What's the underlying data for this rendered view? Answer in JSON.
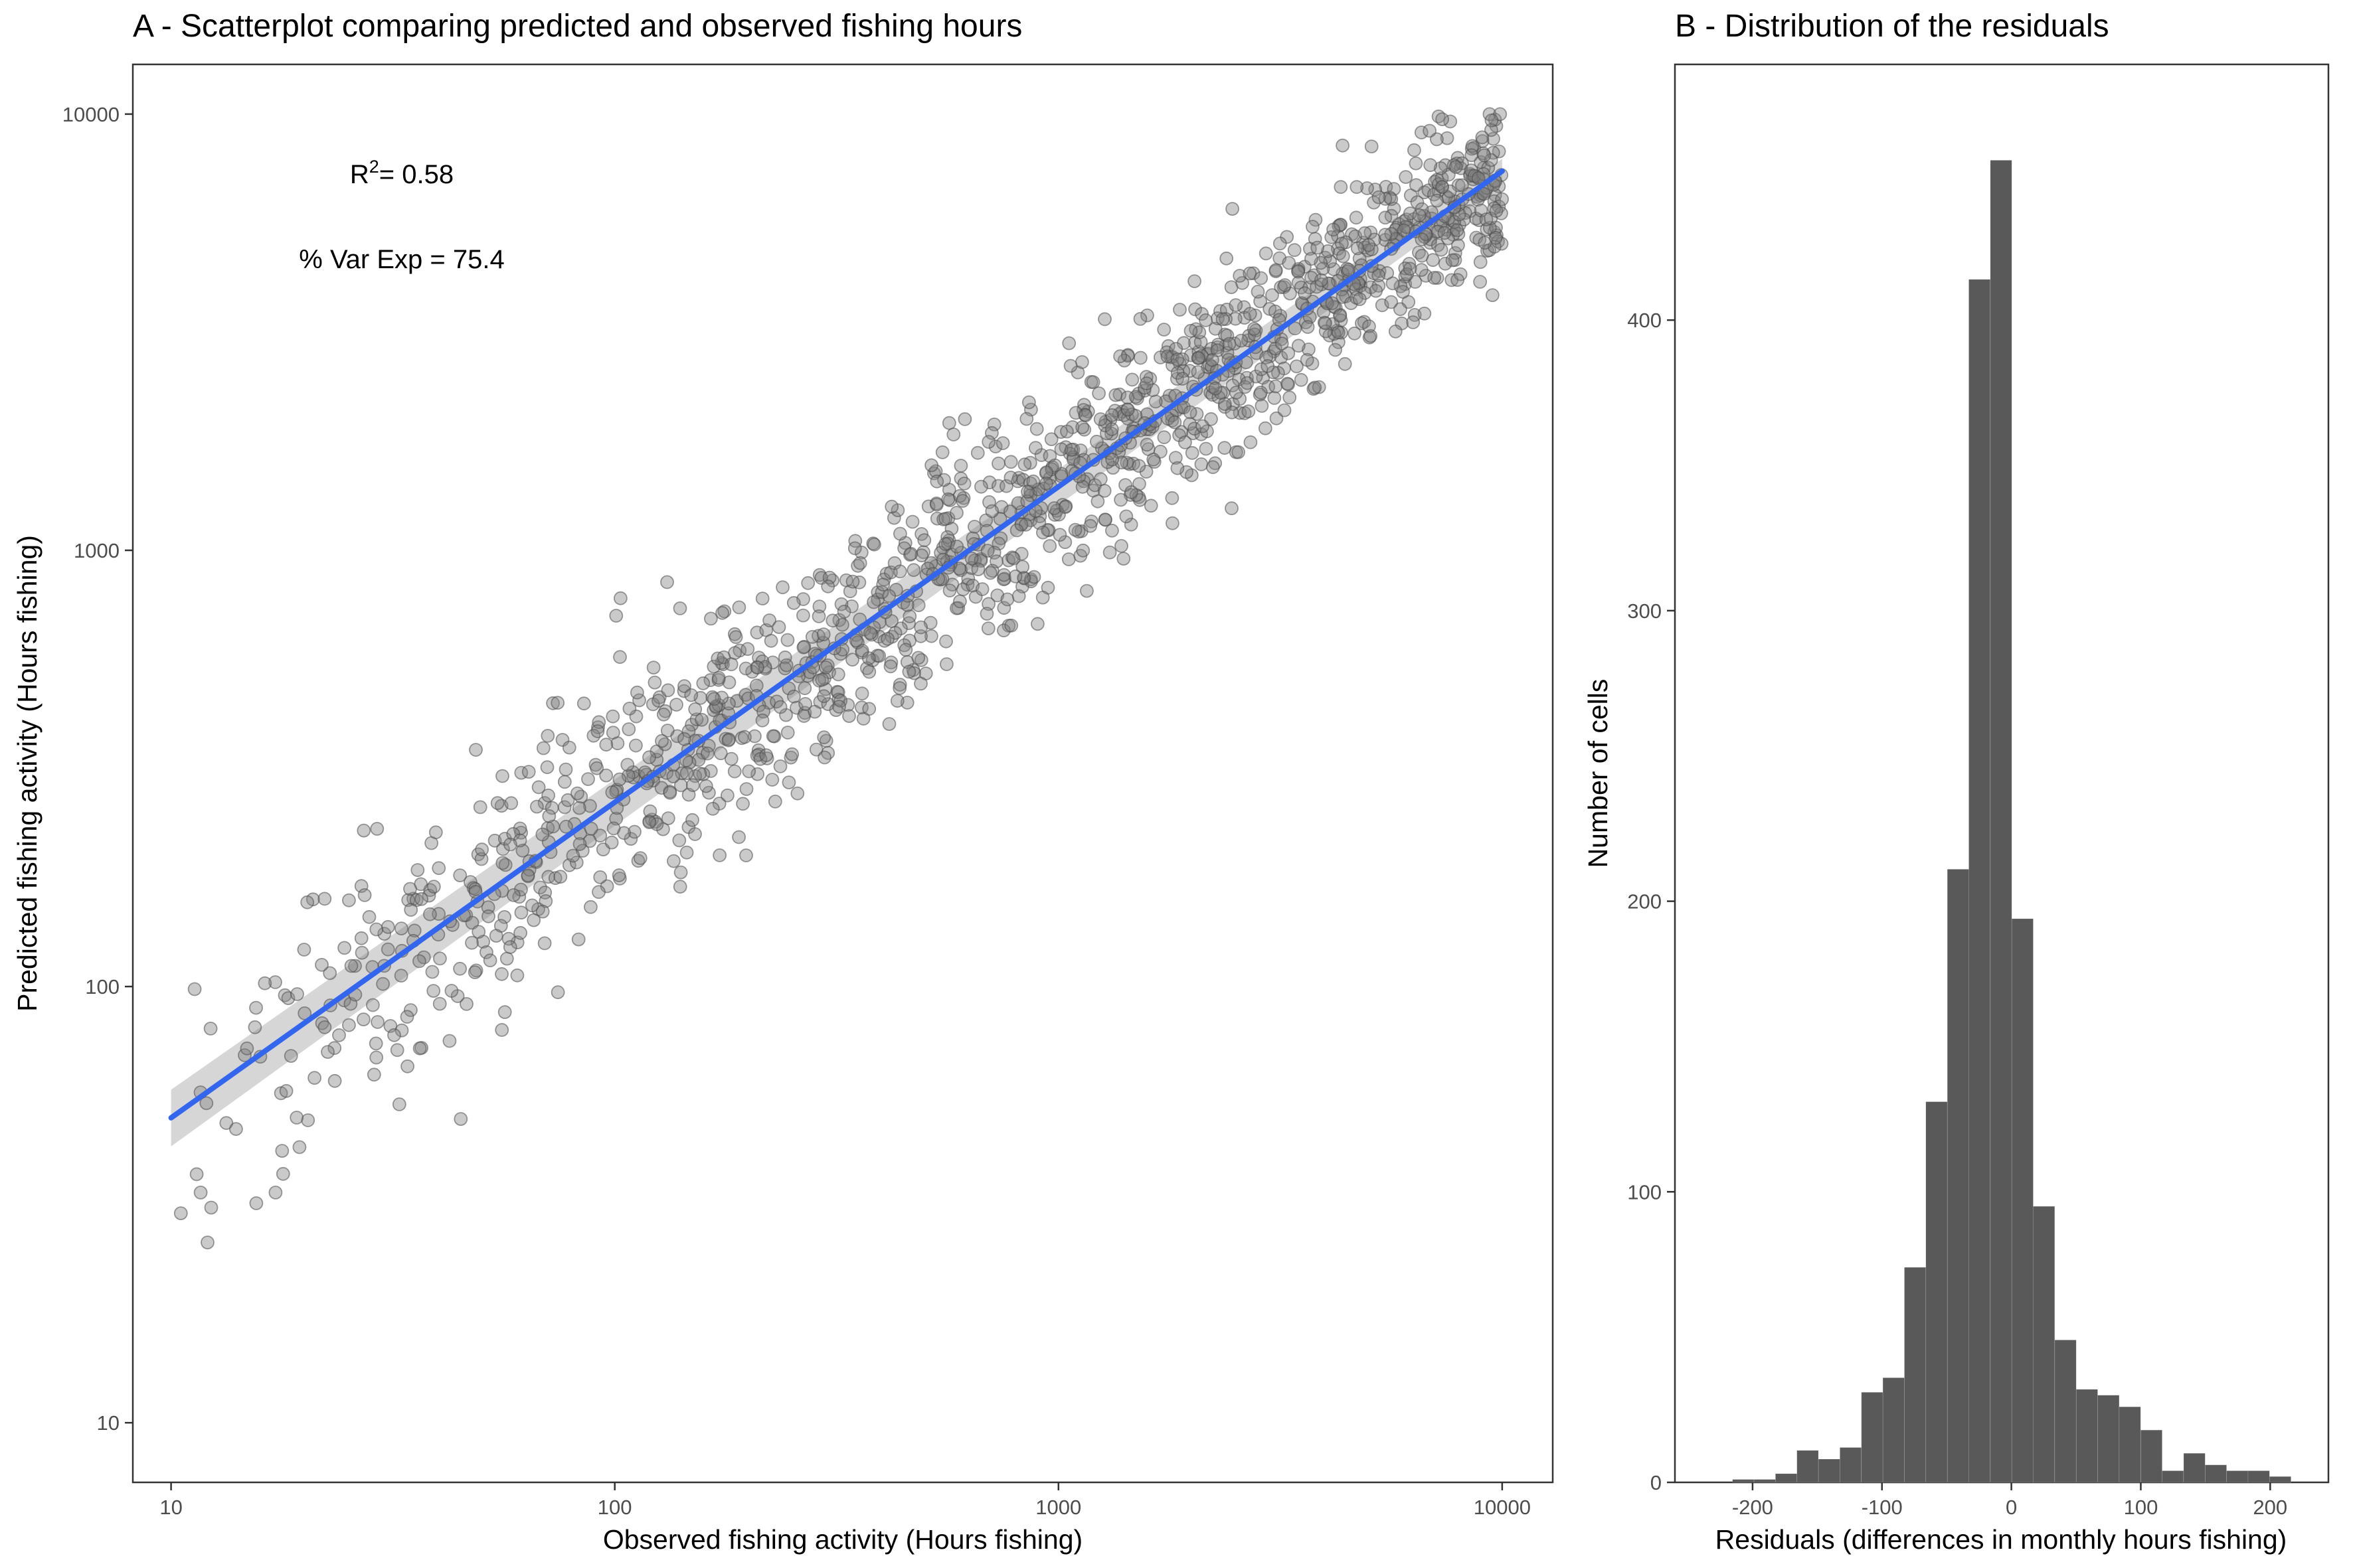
{
  "colors": {
    "point_fill": "#808080",
    "point_stroke": "#4d4d4d",
    "fit_line": "#3366ee",
    "fit_band": "#c8c8c8",
    "bar_fill": "#595959"
  },
  "chart_data": [
    {
      "type": "scatter",
      "title": "A - Scatterplot comparing predicted and observed fishing hours",
      "xlabel": "Observed fishing activity (Hours fishing)",
      "ylabel": "Predicted fishing activity (Hours fishing)",
      "x_scale": "log10",
      "y_scale": "log10",
      "xlim": [
        8.2,
        13000
      ],
      "ylim": [
        7.3,
        13000
      ],
      "x_ticks": [
        10,
        100,
        1000,
        10000
      ],
      "x_tick_labels": [
        "10",
        "100",
        "1000",
        "10000"
      ],
      "y_ticks": [
        10,
        100,
        1000,
        10000
      ],
      "y_tick_labels": [
        "10",
        "100",
        "1000",
        "10000"
      ],
      "annotations": {
        "r2_label": "R",
        "r2_sup": "2",
        "r2_value": "= 0.58",
        "var_exp": "% Var Exp = 75.4"
      },
      "fit_line": {
        "x": [
          10,
          10000
        ],
        "y": [
          50,
          7400
        ]
      },
      "fit_band": {
        "x": [
          10,
          10000
        ],
        "upper": [
          58,
          7900
        ],
        "lower": [
          43,
          6900
        ]
      },
      "grid": false,
      "points_note_count": 1500
    },
    {
      "type": "bar",
      "subtype": "histogram",
      "title": "B - Distribution of the residuals",
      "xlabel": "Residuals (differences in monthly hours fishing)",
      "ylabel": "Number of cells",
      "xlim": [
        -260,
        245
      ],
      "ylim": [
        0,
        488
      ],
      "x_ticks": [
        -200,
        -100,
        0,
        100,
        200
      ],
      "x_tick_labels": [
        "-200",
        "-100",
        "0",
        "100",
        "200"
      ],
      "y_ticks": [
        0,
        100,
        200,
        300,
        400
      ],
      "y_tick_labels": [
        "0",
        "100",
        "200",
        "300",
        "400"
      ],
      "bin_start": -215.5,
      "bin_width": 16.6,
      "counts": [
        1,
        1,
        3,
        11,
        8,
        12,
        31,
        36,
        74,
        131,
        211,
        414,
        455,
        194,
        95,
        49,
        32,
        30,
        26,
        18,
        4,
        10,
        6,
        4,
        4,
        2
      ],
      "grid": false
    }
  ]
}
